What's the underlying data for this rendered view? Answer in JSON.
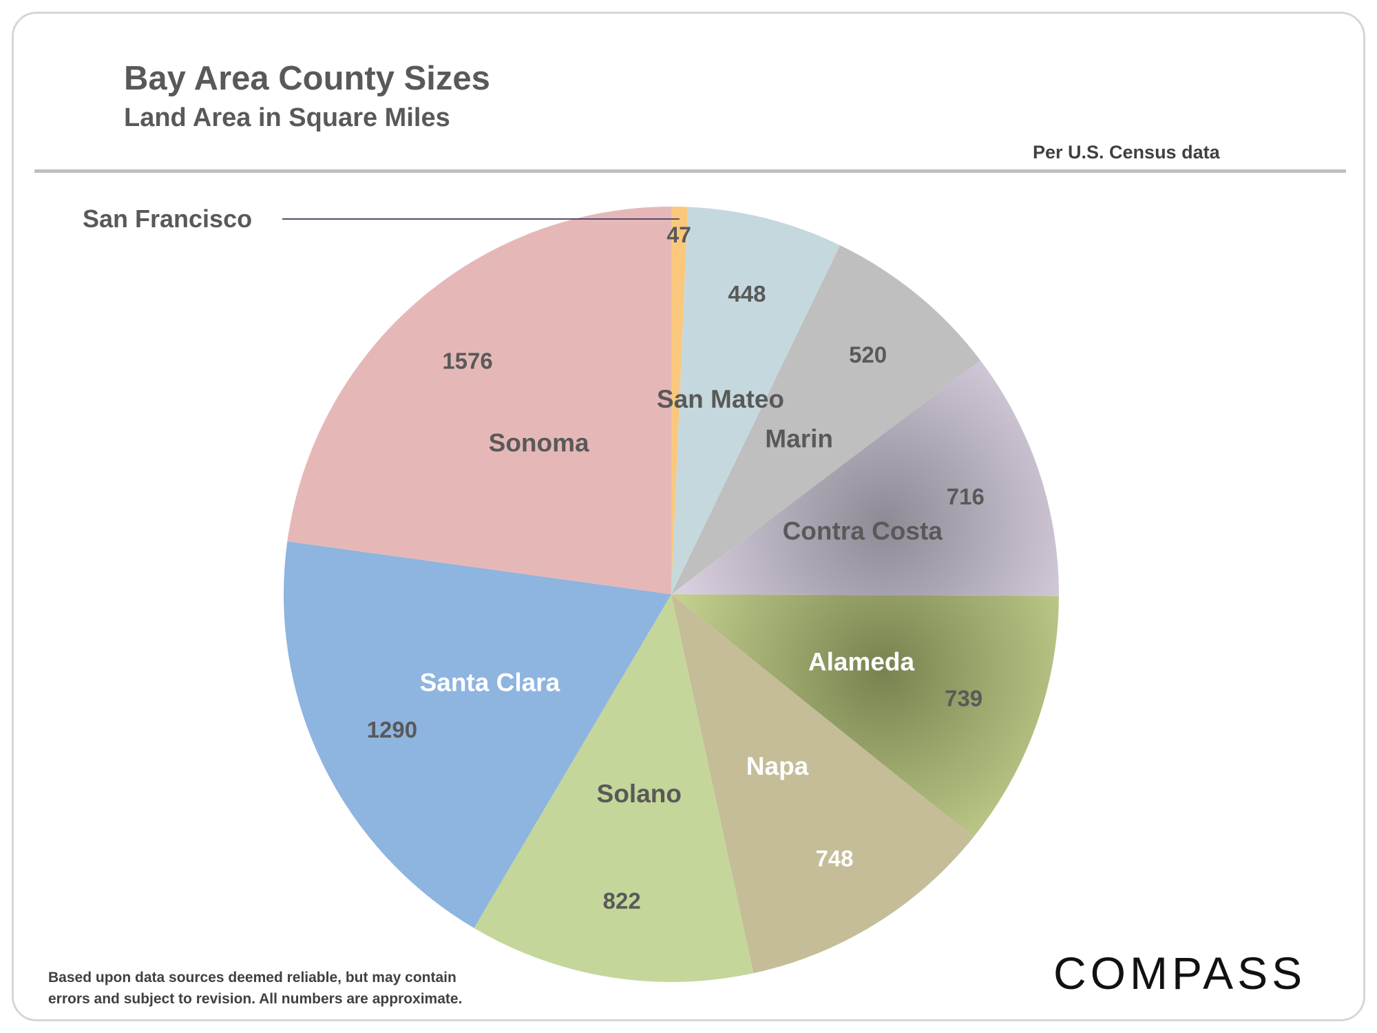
{
  "header": {
    "title": "Bay Area County Sizes",
    "subtitle": "Land Area in Square Miles",
    "source_note": "Per U.S. Census data"
  },
  "footer": {
    "disclaimer_line1": "Based upon data sources deemed reliable, but may contain",
    "disclaimer_line2": "errors and subject to revision. All numbers are approximate.",
    "brand": "COMPASS"
  },
  "chart_data": {
    "type": "pie",
    "title": "Bay Area County Sizes",
    "subtitle": "Land Area in Square Miles",
    "start": "12 o'clock",
    "direction": "clockwise",
    "slices": [
      {
        "name": "San Francisco",
        "value": 47,
        "color": "#f9c87d",
        "label_color": "#595959",
        "callout": true
      },
      {
        "name": "San Mateo",
        "value": 448,
        "color": "#c5d8de",
        "label_color": "#595959"
      },
      {
        "name": "Marin",
        "value": 520,
        "color": "#bfbfbf",
        "label_color": "#595959"
      },
      {
        "name": "Contra Costa",
        "value": 716,
        "color": "#d9d0e0",
        "shade": "#8e8a95",
        "label_color": "#595959"
      },
      {
        "name": "Alameda",
        "value": 739,
        "color": "#c3cf8d",
        "shade": "#77834f",
        "label_color": "#ffffff",
        "value_color": "#595959"
      },
      {
        "name": "Napa",
        "value": 748,
        "color": "#c4bd98",
        "label_color": "#ffffff"
      },
      {
        "name": "Solano",
        "value": 822,
        "color": "#c5d69a",
        "label_color": "#595959"
      },
      {
        "name": "Santa Clara",
        "value": 1290,
        "color": "#8eb4e0",
        "label_color": "#ffffff",
        "value_color": "#595959"
      },
      {
        "name": "Sonoma",
        "value": 1576,
        "color": "#e5b8b7",
        "label_color": "#595959"
      }
    ]
  }
}
